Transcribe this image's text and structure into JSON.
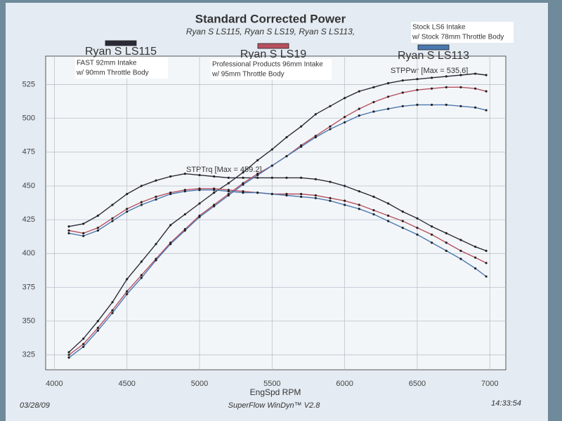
{
  "chart_data": {
    "type": "line",
    "title": "Standard Corrected Power",
    "subtitle": "Ryan S LS115, Ryan S LS19, Ryan S LS113,",
    "x_label": "EngSpd  RPM",
    "power_label": "STPPwr [Max = 535.6]",
    "torque_label": "STPTrq [Max = 459.2]",
    "date": "03/28/09",
    "software": "SuperFlow WinDyn™ V2.8",
    "time": "14:33:54",
    "xlim": [
      3940,
      7110
    ],
    "xticks": [
      4000,
      4500,
      5000,
      5500,
      6000,
      6500,
      7000
    ],
    "ylim": [
      314,
      546
    ],
    "yticks": [
      325,
      350,
      375,
      400,
      425,
      450,
      475,
      500,
      525
    ],
    "grid": true,
    "x": [
      4100,
      4200,
      4300,
      4400,
      4500,
      4600,
      4700,
      4800,
      4900,
      5000,
      5100,
      5200,
      5300,
      5400,
      5500,
      5600,
      5700,
      5800,
      5900,
      6000,
      6100,
      6200,
      6300,
      6400,
      6500,
      6600,
      6700,
      6800,
      6900,
      6975
    ],
    "series": [
      {
        "name": "Ryan S LS115",
        "color": "#2b2b38",
        "note": [
          "FAST 92mm Intake",
          "w/ 90mm Throttle Body"
        ],
        "power": [
          327,
          337,
          350,
          364,
          381,
          394,
          407,
          421,
          429,
          437,
          445,
          452,
          460,
          469,
          477,
          486,
          494,
          503,
          509,
          515,
          520,
          523,
          526,
          528,
          529,
          530,
          531,
          532,
          533,
          532
        ],
        "torque": [
          420,
          422,
          428,
          436,
          444,
          450,
          454,
          457,
          459,
          458,
          457,
          456,
          456,
          456,
          456,
          456,
          456,
          455,
          453,
          450,
          446,
          442,
          437,
          431,
          426,
          420,
          415,
          410,
          405,
          402
        ]
      },
      {
        "name": "Ryan S LS19",
        "color": "#b8505f",
        "note": [
          "Professional Products 96mm Intake",
          "w/  95mm Throttle Body"
        ],
        "power": [
          325,
          333,
          345,
          358,
          372,
          384,
          396,
          408,
          418,
          428,
          436,
          444,
          452,
          459,
          465,
          472,
          480,
          487,
          494,
          501,
          507,
          512,
          516,
          519,
          521,
          522,
          523,
          523,
          522,
          520
        ],
        "torque": [
          417,
          415,
          419,
          426,
          433,
          438,
          442,
          445,
          447,
          448,
          448,
          447,
          446,
          445,
          444,
          444,
          444,
          443,
          441,
          439,
          436,
          432,
          428,
          424,
          419,
          414,
          408,
          402,
          397,
          393
        ]
      },
      {
        "name": "Ryan S LS113",
        "color": "#4a78b0",
        "note": [
          "Stock LS6 Intake",
          "w/ Stock 78mm Throttle Body"
        ],
        "power": [
          323,
          331,
          343,
          356,
          370,
          382,
          395,
          407,
          417,
          427,
          435,
          443,
          451,
          458,
          465,
          472,
          479,
          486,
          492,
          497,
          502,
          505,
          507,
          509,
          510,
          510,
          510,
          509,
          508,
          506
        ],
        "torque": [
          415,
          413,
          417,
          424,
          431,
          436,
          440,
          444,
          446,
          447,
          447,
          446,
          445,
          445,
          444,
          443,
          442,
          441,
          439,
          436,
          433,
          429,
          424,
          419,
          414,
          408,
          402,
          396,
          389,
          383
        ]
      }
    ]
  }
}
